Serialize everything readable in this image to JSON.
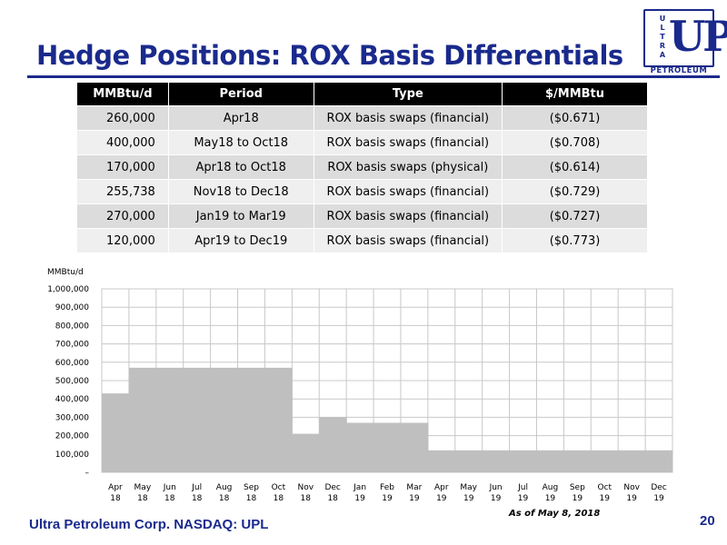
{
  "page": {
    "title": "Hedge Positions:  ROX Basis Differentials",
    "footer": "Ultra Petroleum Corp. NASDAQ: UPL",
    "page_number": "20",
    "as_of": "As of May 8, 2018"
  },
  "logo": {
    "word": "ULTRA",
    "mark": "UP",
    "sub": "PETROLEUM"
  },
  "table": {
    "headers": [
      "MMBtu/d",
      "Period",
      "Type",
      "$/MMBtu"
    ],
    "rows": [
      [
        "260,000",
        "Apr18",
        "ROX basis swaps (financial)",
        "($0.671)"
      ],
      [
        "400,000",
        "May18 to Oct18",
        "ROX basis swaps (financial)",
        "($0.708)"
      ],
      [
        "170,000",
        "Apr18 to Oct18",
        "ROX basis swaps (physical)",
        "($0.614)"
      ],
      [
        "255,738",
        "Nov18 to Dec18",
        "ROX basis swaps (financial)",
        "($0.729)"
      ],
      [
        "270,000",
        "Jan19 to Mar19",
        "ROX basis swaps (financial)",
        "($0.727)"
      ],
      [
        "120,000",
        "Apr19 to Dec19",
        "ROX basis swaps (financial)",
        "($0.773)"
      ]
    ]
  },
  "chart_data": {
    "type": "area",
    "title": "",
    "xlabel": "",
    "ylabel": "MMBtu/d",
    "ylim": [
      0,
      1000000
    ],
    "grid": true,
    "yticks": [
      0,
      100000,
      200000,
      300000,
      400000,
      500000,
      600000,
      700000,
      800000,
      900000,
      1000000
    ],
    "yticklabels": [
      "–",
      "100,000",
      "200,000",
      "300,000",
      "400,000",
      "500,000",
      "600,000",
      "700,000",
      "800,000",
      "900,000",
      "1,000,000"
    ],
    "categories": [
      [
        "Apr",
        "18"
      ],
      [
        "May",
        "18"
      ],
      [
        "Jun",
        "18"
      ],
      [
        "Jul",
        "18"
      ],
      [
        "Aug",
        "18"
      ],
      [
        "Sep",
        "18"
      ],
      [
        "Oct",
        "18"
      ],
      [
        "Nov",
        "18"
      ],
      [
        "Dec",
        "18"
      ],
      [
        "Jan",
        "19"
      ],
      [
        "Feb",
        "19"
      ],
      [
        "Mar",
        "19"
      ],
      [
        "Apr",
        "19"
      ],
      [
        "May",
        "19"
      ],
      [
        "Jun",
        "19"
      ],
      [
        "Jul",
        "19"
      ],
      [
        "Aug",
        "19"
      ],
      [
        "Sep",
        "19"
      ],
      [
        "Oct",
        "19"
      ],
      [
        "Nov",
        "19"
      ],
      [
        "Dec",
        "19"
      ]
    ],
    "values": [
      430000,
      570000,
      570000,
      570000,
      570000,
      570000,
      570000,
      210000,
      300000,
      270000,
      270000,
      270000,
      120000,
      120000,
      120000,
      120000,
      120000,
      120000,
      120000,
      120000,
      120000
    ],
    "fill_color": "#bfbfbf",
    "grid_color": "#c8c8c8"
  }
}
